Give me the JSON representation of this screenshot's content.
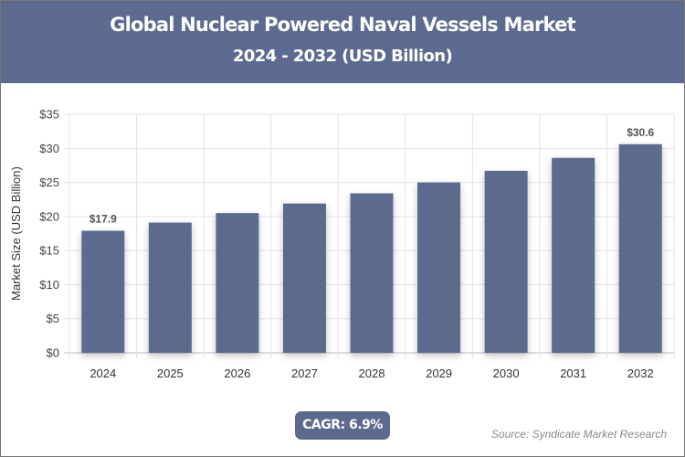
{
  "header": {
    "title": "Global Nuclear Powered Naval Vessels Market",
    "subtitle": "2024 - 2032 (USD Billion)"
  },
  "chart_data": {
    "type": "bar",
    "categories": [
      "2024",
      "2025",
      "2026",
      "2027",
      "2028",
      "2029",
      "2030",
      "2031",
      "2032"
    ],
    "values": [
      17.9,
      19.1,
      20.5,
      21.9,
      23.4,
      25.0,
      26.7,
      28.6,
      30.6
    ],
    "data_labels": {
      "0": "$17.9",
      "8": "$30.6"
    },
    "ylabel": "Market Size (USD Billion)",
    "xlabel": "",
    "ylim": [
      0,
      35
    ],
    "yticks": [
      "$0",
      "$5",
      "$10",
      "$15",
      "$20",
      "$25",
      "$30",
      "$35"
    ],
    "grid": true,
    "bar_color": "#5b6a8e"
  },
  "footer": {
    "cagr": "CAGR: 6.9%",
    "source": "Source: Syndicate Market Research"
  }
}
